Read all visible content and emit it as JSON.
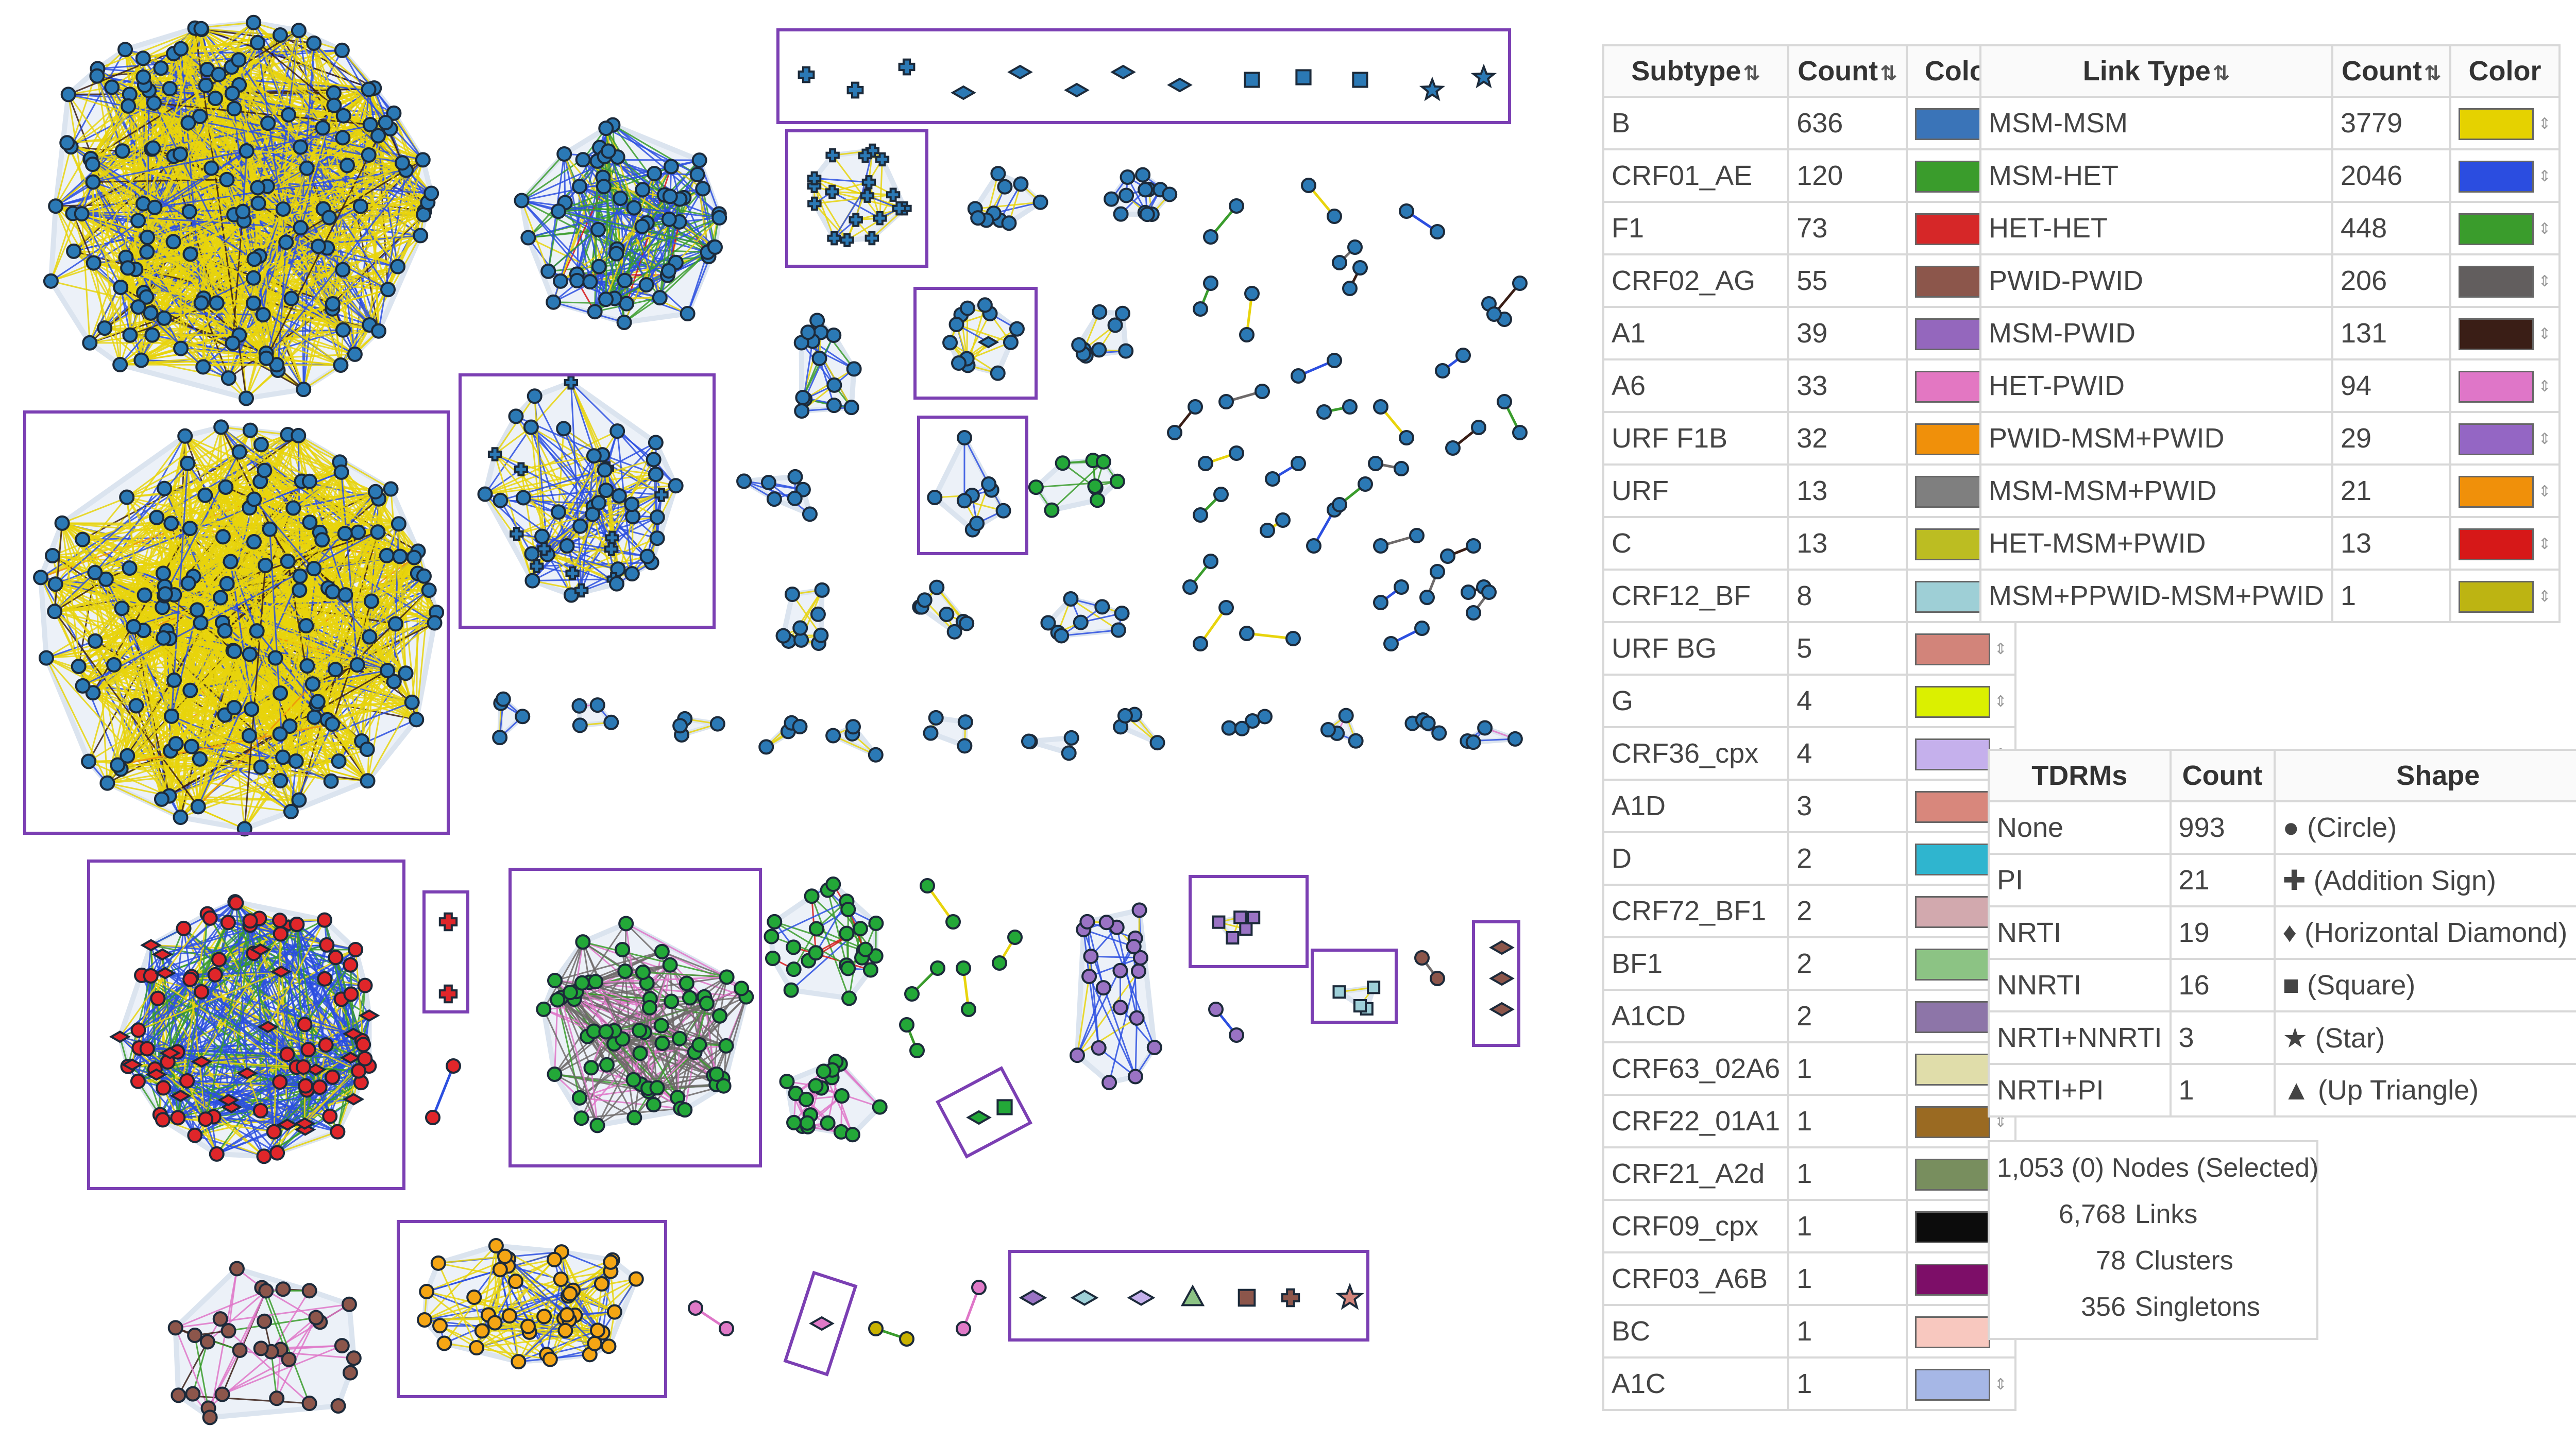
{
  "subtype_table": {
    "headers": [
      "Subtype",
      "Count",
      "Color"
    ],
    "rows": [
      {
        "label": "B",
        "count": "636",
        "color": "#3a74b8"
      },
      {
        "label": "CRF01_AE",
        "count": "120",
        "color": "#3a9c2c"
      },
      {
        "label": "F1",
        "count": "73",
        "color": "#d62728"
      },
      {
        "label": "CRF02_AG",
        "count": "55",
        "color": "#8c564b"
      },
      {
        "label": "A1",
        "count": "39",
        "color": "#9467bd"
      },
      {
        "label": "A6",
        "count": "33",
        "color": "#e377c2"
      },
      {
        "label": "URF F1B",
        "count": "32",
        "color": "#f0900a"
      },
      {
        "label": "URF",
        "count": "13",
        "color": "#7f7f7f"
      },
      {
        "label": "C",
        "count": "13",
        "color": "#bcbd22"
      },
      {
        "label": "CRF12_BF",
        "count": "8",
        "color": "#9ecfd6"
      },
      {
        "label": "URF BG",
        "count": "5",
        "color": "#d2847a"
      },
      {
        "label": "G",
        "count": "4",
        "color": "#dbf000"
      },
      {
        "label": "CRF36_cpx",
        "count": "4",
        "color": "#c5b0ec"
      },
      {
        "label": "A1D",
        "count": "3",
        "color": "#d8877c"
      },
      {
        "label": "D",
        "count": "2",
        "color": "#2fb5cf"
      },
      {
        "label": "CRF72_BF1",
        "count": "2",
        "color": "#d2a9ae"
      },
      {
        "label": "BF1",
        "count": "2",
        "color": "#8cc384"
      },
      {
        "label": "A1CD",
        "count": "2",
        "color": "#8d75a8"
      },
      {
        "label": "CRF63_02A6",
        "count": "1",
        "color": "#e0ddaa"
      },
      {
        "label": "CRF22_01A1",
        "count": "1",
        "color": "#9a6a22"
      },
      {
        "label": "CRF21_A2d",
        "count": "1",
        "color": "#788e5e"
      },
      {
        "label": "CRF09_cpx",
        "count": "1",
        "color": "#0c0c0c"
      },
      {
        "label": "CRF03_A6B",
        "count": "1",
        "color": "#7d0e68"
      },
      {
        "label": "BC",
        "count": "1",
        "color": "#f8c8bf"
      },
      {
        "label": "A1C",
        "count": "1",
        "color": "#a6b7e6"
      }
    ]
  },
  "link_table": {
    "headers": [
      "Link Type",
      "Count",
      "Color"
    ],
    "rows": [
      {
        "label": "MSM-MSM",
        "count": "3779",
        "color": "#e5d200"
      },
      {
        "label": "MSM-HET",
        "count": "2046",
        "color": "#2b4de0"
      },
      {
        "label": "HET-HET",
        "count": "448",
        "color": "#3a9c2c"
      },
      {
        "label": "PWID-PWID",
        "count": "206",
        "color": "#625e5e"
      },
      {
        "label": "MSM-PWID",
        "count": "131",
        "color": "#3a1e16"
      },
      {
        "label": "HET-PWID",
        "count": "94",
        "color": "#df76c8"
      },
      {
        "label": "PWID-MSM+PWID",
        "count": "29",
        "color": "#9466c4"
      },
      {
        "label": "MSM-MSM+PWID",
        "count": "21",
        "color": "#f0900a"
      },
      {
        "label": "HET-MSM+PWID",
        "count": "13",
        "color": "#d61818"
      },
      {
        "label": "MSM+PPWID-MSM+PWID",
        "count": "1",
        "color": "#bdb412"
      }
    ]
  },
  "tdrm_table": {
    "headers": [
      "TDRMs",
      "Count",
      "Shape"
    ],
    "rows": [
      {
        "label": "None",
        "count": "993",
        "shape": "● (Circle)"
      },
      {
        "label": "PI",
        "count": "21",
        "shape": "✚ (Addition Sign)"
      },
      {
        "label": "NRTI",
        "count": "19",
        "shape": "♦ (Horizontal Diamond)"
      },
      {
        "label": "NNRTI",
        "count": "16",
        "shape": "■ (Square)"
      },
      {
        "label": "NRTI+NNRTI",
        "count": "3",
        "shape": "★ (Star)"
      },
      {
        "label": "NRTI+PI",
        "count": "1",
        "shape": "▲ (Up Triangle)"
      }
    ]
  },
  "stats": {
    "nodes_value": "1,053 (0)",
    "nodes_label": "Nodes (Selected)",
    "links_value": "6,768",
    "links_label": "Links",
    "clusters_value": "78",
    "clusters_label": "Clusters",
    "singletons_value": "356",
    "singletons_label": "Singletons"
  },
  "icons": {
    "sort": "sort-arrows-icon",
    "dropdown": "chevron-down-icon",
    "spinner": "spinner-arrows-icon"
  }
}
